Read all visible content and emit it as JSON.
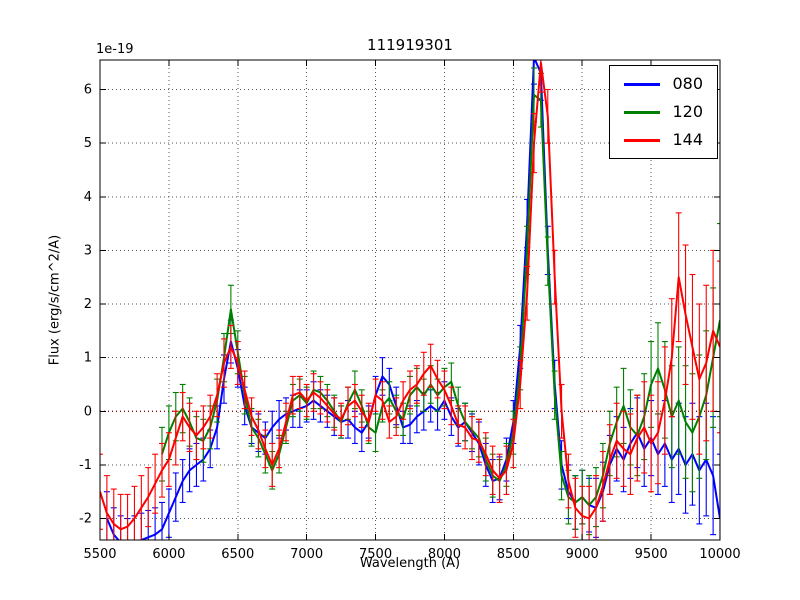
{
  "figure": {
    "background": "#ffffff"
  },
  "chart_data": {
    "type": "line",
    "title": "111919301",
    "xlabel": "Wavelength (A)",
    "ylabel": "Flux (erg/s/cm^2/A)",
    "offset_text": "1e-19",
    "xlim": [
      5500,
      10000
    ],
    "ylim": [
      -2.4,
      6.55
    ],
    "xticks": [
      5500,
      6000,
      6500,
      7000,
      7500,
      8000,
      8500,
      9000,
      9500,
      10000
    ],
    "yticks": [
      -2,
      -1,
      0,
      1,
      2,
      3,
      4,
      5,
      6
    ],
    "grid": true,
    "grid_style": {
      "color": "#555555",
      "dash": "1,3"
    },
    "zero_line": {
      "y": 0,
      "color": "#8b0000",
      "dash": "1,3"
    },
    "axes_color": "#000000",
    "legend": {
      "position": "upper right",
      "entries": [
        "080",
        "120",
        "144"
      ]
    },
    "series": [
      {
        "name": "080",
        "color": "#0000ff",
        "x_start": 5550,
        "x_step": 50,
        "y": [
          -2.0,
          -2.3,
          -2.45,
          -2.5,
          -2.45,
          -2.4,
          -2.35,
          -2.3,
          -2.2,
          -1.9,
          -1.6,
          -1.3,
          -1.1,
          -1.0,
          -0.9,
          -0.7,
          -0.3,
          0.6,
          1.3,
          0.8,
          0.1,
          -0.3,
          -0.4,
          -0.5,
          -0.3,
          -0.15,
          -0.05,
          0.0,
          0.05,
          0.1,
          0.2,
          0.1,
          0.0,
          -0.1,
          -0.2,
          -0.15,
          -0.3,
          -0.4,
          -0.2,
          0.3,
          0.65,
          0.5,
          0.1,
          -0.3,
          -0.25,
          -0.1,
          0.0,
          0.1,
          0.0,
          0.2,
          -0.1,
          -0.3,
          -0.2,
          -0.4,
          -0.6,
          -1.0,
          -1.3,
          -1.25,
          -0.9,
          -0.2,
          1.2,
          3.5,
          6.6,
          6.3,
          3.0,
          0.5,
          -1.0,
          -1.5,
          -1.7,
          -1.6,
          -1.75,
          -1.8,
          -1.5,
          -1.0,
          -0.7,
          -0.9,
          -0.6,
          -0.4,
          -0.7,
          -0.5,
          -0.8,
          -0.6,
          -0.9,
          -0.7,
          -1.0,
          -0.8,
          -1.1,
          -0.9,
          -1.2,
          -2.0
        ],
        "yerr": [
          0.5,
          0.5,
          0.5,
          0.5,
          0.5,
          0.5,
          0.5,
          0.5,
          0.5,
          0.45,
          0.45,
          0.4,
          0.4,
          0.4,
          0.4,
          0.35,
          0.4,
          0.45,
          0.4,
          0.35,
          0.35,
          0.3,
          0.35,
          0.3,
          0.3,
          0.35,
          0.3,
          0.3,
          0.35,
          0.3,
          0.35,
          0.3,
          0.3,
          0.35,
          0.3,
          0.35,
          0.3,
          0.35,
          0.3,
          0.35,
          0.35,
          0.3,
          0.35,
          0.3,
          0.35,
          0.3,
          0.35,
          0.3,
          0.35,
          0.35,
          0.35,
          0.35,
          0.35,
          0.35,
          0.4,
          0.4,
          0.4,
          0.4,
          0.4,
          0.4,
          0.4,
          0.45,
          0.5,
          0.5,
          0.45,
          0.45,
          0.45,
          0.5,
          0.5,
          0.5,
          0.5,
          0.55,
          0.55,
          0.55,
          0.6,
          0.6,
          0.65,
          0.65,
          0.7,
          0.7,
          0.75,
          0.8,
          0.8,
          0.85,
          0.9,
          0.95,
          1.0,
          1.05,
          1.1,
          1.2
        ]
      },
      {
        "name": "120",
        "color": "#008000",
        "x_start": 5950,
        "x_step": 50,
        "y": [
          -0.8,
          -0.4,
          -0.1,
          0.05,
          -0.2,
          -0.5,
          -0.55,
          -0.3,
          0.2,
          1.0,
          1.9,
          1.1,
          0.3,
          -0.3,
          -0.5,
          -0.8,
          -1.1,
          -0.8,
          -0.3,
          0.2,
          0.3,
          0.15,
          0.4,
          0.35,
          0.2,
          0.0,
          -0.2,
          0.15,
          0.4,
          0.1,
          -0.3,
          -0.4,
          0.1,
          0.25,
          0.0,
          -0.15,
          0.3,
          0.45,
          0.3,
          0.5,
          0.3,
          0.45,
          0.55,
          0.1,
          -0.2,
          -0.35,
          -0.5,
          -0.9,
          -1.2,
          -1.3,
          -1.0,
          -0.4,
          0.8,
          3.0,
          5.9,
          5.8,
          2.8,
          0.3,
          -1.2,
          -1.6,
          -1.7,
          -1.6,
          -1.75,
          -1.6,
          -1.2,
          -0.6,
          -0.2,
          0.1,
          -0.3,
          -0.45,
          -0.1,
          0.5,
          0.8,
          0.4,
          -0.1,
          0.2,
          -0.2,
          -0.4,
          -0.1,
          0.3,
          1.0,
          1.7
        ],
        "yerr": [
          0.5,
          0.5,
          0.45,
          0.45,
          0.45,
          0.4,
          0.4,
          0.4,
          0.4,
          0.45,
          0.45,
          0.4,
          0.35,
          0.35,
          0.35,
          0.35,
          0.35,
          0.35,
          0.3,
          0.3,
          0.3,
          0.3,
          0.35,
          0.3,
          0.3,
          0.3,
          0.3,
          0.3,
          0.35,
          0.3,
          0.3,
          0.35,
          0.3,
          0.3,
          0.3,
          0.3,
          0.35,
          0.35,
          0.3,
          0.35,
          0.3,
          0.35,
          0.35,
          0.35,
          0.35,
          0.35,
          0.35,
          0.4,
          0.4,
          0.4,
          0.4,
          0.4,
          0.4,
          0.45,
          0.5,
          0.5,
          0.45,
          0.45,
          0.45,
          0.5,
          0.5,
          0.5,
          0.55,
          0.55,
          0.6,
          0.6,
          0.65,
          0.7,
          0.7,
          0.75,
          0.8,
          0.8,
          0.85,
          0.9,
          0.95,
          1.0,
          1.05,
          1.1,
          1.15,
          1.2,
          1.3,
          1.8
        ]
      },
      {
        "name": "144",
        "color": "#ff0000",
        "x_start": 5500,
        "x_step": 50,
        "y": [
          -1.5,
          -1.9,
          -2.1,
          -2.2,
          -2.15,
          -2.0,
          -1.8,
          -1.6,
          -1.35,
          -1.1,
          -0.9,
          -0.5,
          -0.1,
          -0.3,
          -0.45,
          -0.3,
          -0.1,
          0.3,
          0.9,
          1.2,
          0.9,
          0.4,
          -0.1,
          -0.35,
          -0.7,
          -1.0,
          -0.7,
          -0.2,
          0.3,
          0.35,
          0.2,
          0.35,
          0.25,
          0.1,
          -0.05,
          -0.15,
          0.1,
          0.2,
          0.0,
          -0.2,
          0.3,
          0.2,
          -0.2,
          -0.1,
          0.2,
          0.4,
          0.5,
          0.7,
          0.85,
          0.6,
          0.4,
          0.1,
          -0.25,
          -0.3,
          -0.5,
          -0.55,
          -0.8,
          -1.1,
          -1.25,
          -1.1,
          -0.6,
          0.5,
          2.2,
          5.0,
          6.5,
          5.5,
          2.5,
          0.0,
          -1.3,
          -1.8,
          -1.95,
          -2.0,
          -1.8,
          -1.4,
          -0.9,
          -0.55,
          -0.7,
          -0.8,
          -0.5,
          -0.3,
          -0.6,
          -0.4,
          0.2,
          1.0,
          2.5,
          1.8,
          1.2,
          0.6,
          0.9,
          1.5,
          1.2
        ],
        "yerr": [
          0.7,
          0.7,
          0.65,
          0.65,
          0.6,
          0.6,
          0.6,
          0.55,
          0.55,
          0.5,
          0.5,
          0.5,
          0.45,
          0.45,
          0.45,
          0.4,
          0.4,
          0.4,
          0.45,
          0.4,
          0.4,
          0.35,
          0.35,
          0.35,
          0.35,
          0.4,
          0.35,
          0.35,
          0.35,
          0.3,
          0.3,
          0.35,
          0.3,
          0.3,
          0.3,
          0.3,
          0.35,
          0.3,
          0.3,
          0.35,
          0.3,
          0.35,
          0.3,
          0.35,
          0.35,
          0.35,
          0.35,
          0.4,
          0.4,
          0.35,
          0.35,
          0.35,
          0.35,
          0.4,
          0.4,
          0.4,
          0.4,
          0.45,
          0.45,
          0.45,
          0.45,
          0.45,
          0.5,
          0.55,
          0.55,
          0.5,
          0.5,
          0.5,
          0.5,
          0.55,
          0.55,
          0.6,
          0.6,
          0.65,
          0.65,
          0.7,
          0.7,
          0.75,
          0.8,
          0.85,
          0.9,
          0.95,
          1.0,
          1.1,
          1.2,
          1.3,
          1.35,
          1.4,
          1.45,
          1.5,
          1.6
        ]
      }
    ]
  }
}
